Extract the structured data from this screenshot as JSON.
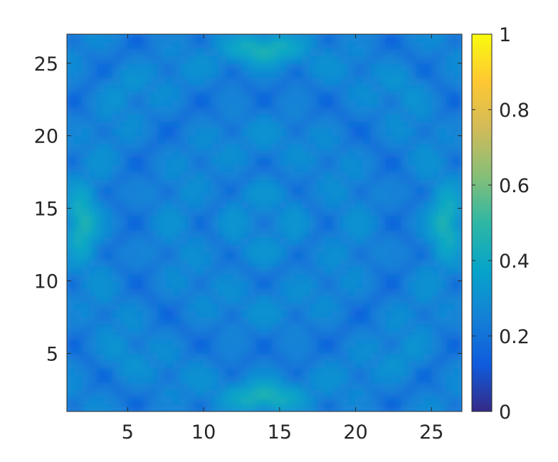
{
  "chart_data": {
    "type": "heatmap",
    "title": "",
    "xlabel": "",
    "ylabel": "",
    "xlim": [
      1,
      27
    ],
    "ylim": [
      1,
      27
    ],
    "x_ticks": [
      5,
      10,
      15,
      20,
      25
    ],
    "y_ticks": [
      5,
      10,
      15,
      20,
      25
    ],
    "colorbar": {
      "colormap": "parula",
      "range": [
        0,
        1
      ],
      "ticks": [
        0,
        0.2,
        0.4,
        0.6,
        0.8,
        1
      ],
      "tick_labels": [
        "0",
        "0.2",
        "0.4",
        "0.6",
        "0.8",
        "1"
      ]
    },
    "colormap_colors": [
      "#352a87",
      "#0f5cdd",
      "#1481d6",
      "#06a4ca",
      "#2eb7a4",
      "#87bf77",
      "#d1bb59",
      "#fec832",
      "#f9fb0e"
    ],
    "notes_on_values": "symmetric pattern, base level about 0.28, dark diagonal stripes about 0.15-0.2, brighter patches about 0.45-0.5 near the middle of each edge, center ring about 0.35",
    "value_summary": {
      "background": 0.28,
      "minimum": 0.12,
      "maximum": 0.5,
      "edge_midpoints": 0.48,
      "center_ring": 0.36
    }
  }
}
